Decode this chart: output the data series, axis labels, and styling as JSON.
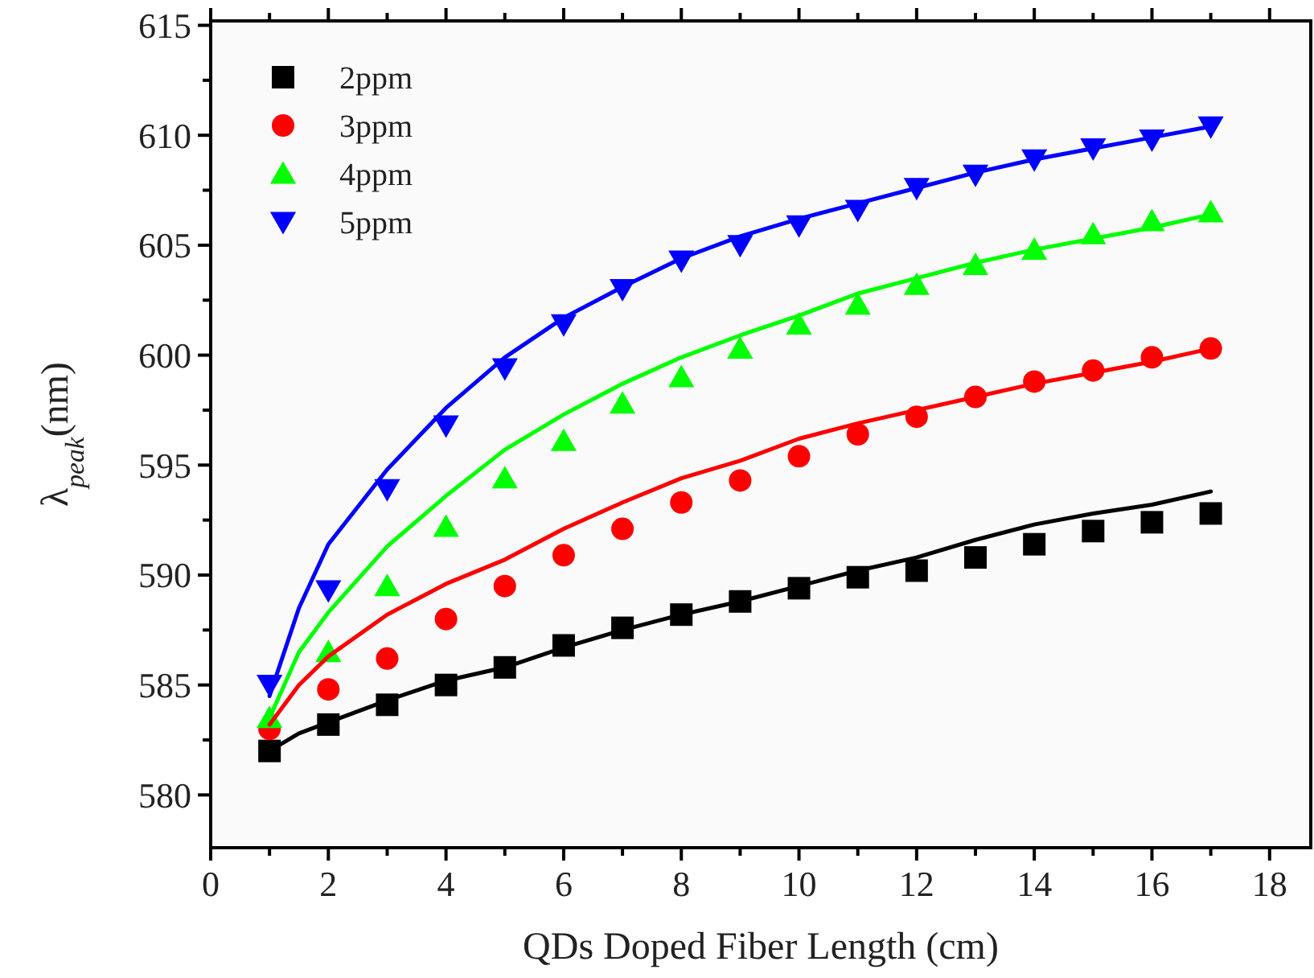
{
  "chart_data": {
    "type": "scatter",
    "xlabel": "QDs Doped Fiber Length (cm)",
    "ylabel": "λ$_{peak}$(nm)",
    "x": [
      1,
      2,
      3,
      4,
      5,
      6,
      7,
      8,
      9,
      10,
      11,
      12,
      13,
      14,
      15,
      16,
      17
    ],
    "xlim": [
      0,
      18.7
    ],
    "xticks": [
      0,
      {
        "value": 1,
        "label": null
      },
      2,
      {
        "value": 3,
        "label": null
      },
      4,
      {
        "value": 5,
        "label": null
      },
      6,
      {
        "value": 7,
        "label": null
      },
      8,
      {
        "value": 9,
        "label": null
      },
      10,
      {
        "value": 11,
        "label": null
      },
      12,
      {
        "value": 13,
        "label": null
      },
      14,
      {
        "value": 15,
        "label": null
      },
      16,
      {
        "value": 17,
        "label": null
      },
      18
    ],
    "ylim": [
      577.6,
      615.2
    ],
    "yticks": [
      580,
      {
        "value": 582.5,
        "label": null
      },
      585,
      {
        "value": 587.5,
        "label": null
      },
      590,
      {
        "value": 592.5,
        "label": null
      },
      595,
      {
        "value": 597.5,
        "label": null
      },
      600,
      {
        "value": 602.5,
        "label": null
      },
      605,
      {
        "value": 607.5,
        "label": null
      },
      610,
      {
        "value": 612.5,
        "label": null
      },
      615
    ],
    "grid": false,
    "legend": "top left",
    "series": [
      {
        "name": "2ppm",
        "color": "#000000",
        "marker": "square",
        "values": [
          582.0,
          583.2,
          584.1,
          585.0,
          585.8,
          586.8,
          587.6,
          588.2,
          588.8,
          589.4,
          589.9,
          590.2,
          590.8,
          591.4,
          592.0,
          592.4,
          592.8
        ]
      },
      {
        "name": "3ppm",
        "color": "#ff0000",
        "marker": "circle",
        "values": [
          583.0,
          584.8,
          586.2,
          588.0,
          589.5,
          590.9,
          592.1,
          593.3,
          594.3,
          595.4,
          596.4,
          597.2,
          598.1,
          598.8,
          599.3,
          599.9,
          600.3
        ]
      },
      {
        "name": "4ppm",
        "color": "#00ff00",
        "marker": "triangle",
        "values": [
          583.5,
          586.5,
          589.5,
          592.2,
          594.4,
          596.1,
          597.8,
          599.0,
          600.3,
          601.4,
          602.3,
          603.2,
          604.1,
          604.8,
          605.5,
          606.1,
          606.5
        ]
      },
      {
        "name": "5ppm",
        "color": "#0000ff",
        "marker": "triangle-down",
        "values": [
          585.0,
          589.3,
          593.9,
          596.8,
          599.4,
          601.4,
          603.0,
          604.3,
          605.0,
          605.9,
          606.6,
          607.6,
          608.2,
          608.9,
          609.4,
          609.8,
          610.4
        ]
      },
      {
        "type": "line",
        "color": "#000000",
        "marker": "none",
        "line_style": "solid",
        "x": [
          1,
          1.5,
          2,
          3,
          4,
          5,
          6,
          7,
          8,
          9,
          10,
          11,
          12,
          13,
          14,
          15,
          16,
          17
        ],
        "values": [
          582.0,
          582.8,
          583.3,
          584.3,
          585.2,
          585.8,
          586.7,
          587.5,
          588.2,
          588.8,
          589.5,
          590.2,
          590.8,
          591.6,
          592.3,
          592.8,
          593.2,
          593.8
        ]
      },
      {
        "type": "line",
        "color": "#ff0000",
        "marker": "none",
        "line_style": "solid",
        "x": [
          1,
          1.5,
          2,
          3,
          4,
          5,
          6,
          7,
          8,
          9,
          10,
          11,
          12,
          13,
          14,
          15,
          16,
          17
        ],
        "values": [
          583.2,
          585.0,
          586.3,
          588.2,
          589.6,
          590.7,
          592.1,
          593.3,
          594.4,
          595.2,
          596.2,
          596.9,
          597.5,
          598.1,
          598.7,
          599.2,
          599.7,
          600.3
        ]
      },
      {
        "type": "line",
        "color": "#00ff00",
        "marker": "none",
        "line_style": "solid",
        "x": [
          1,
          1.5,
          2,
          3,
          4,
          5,
          6,
          7,
          8,
          9,
          10,
          11,
          12,
          13,
          14,
          15,
          16,
          17
        ],
        "values": [
          583.5,
          586.5,
          588.3,
          591.3,
          593.6,
          595.7,
          597.3,
          598.7,
          599.9,
          600.9,
          601.8,
          602.8,
          603.5,
          604.2,
          604.8,
          605.3,
          605.8,
          606.4
        ]
      },
      {
        "type": "line",
        "color": "#0000ff",
        "marker": "none",
        "line_style": "solid",
        "x": [
          1,
          1.5,
          2,
          3,
          4,
          5,
          6,
          7,
          8,
          9,
          10,
          11,
          12,
          13,
          14,
          15,
          16,
          17
        ],
        "values": [
          584.5,
          588.5,
          591.4,
          594.8,
          597.6,
          599.9,
          601.7,
          603.1,
          604.4,
          605.4,
          606.2,
          606.9,
          607.6,
          608.3,
          608.9,
          609.4,
          609.9,
          610.4
        ]
      }
    ]
  }
}
